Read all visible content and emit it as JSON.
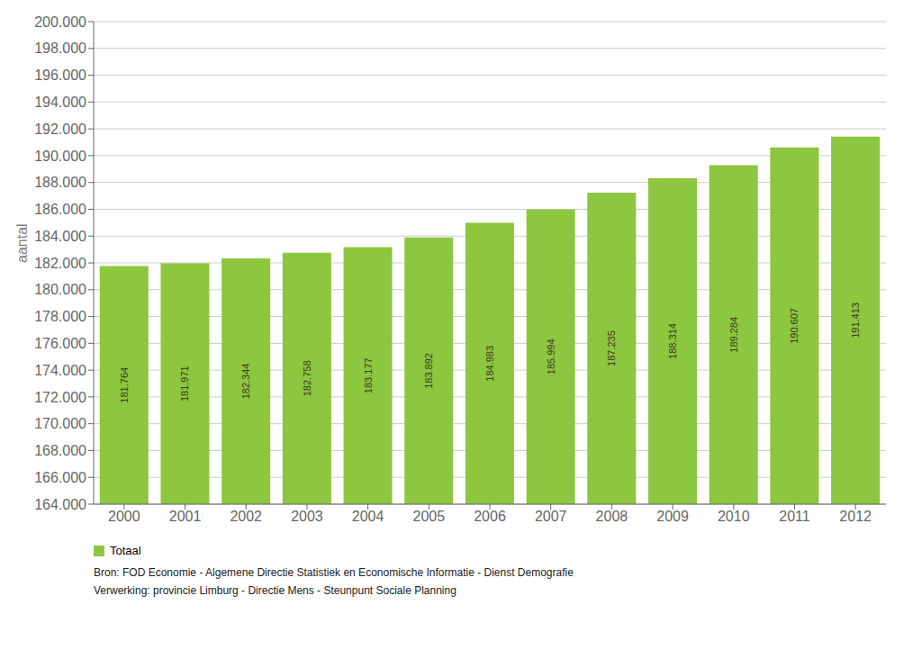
{
  "chart_data": {
    "type": "bar",
    "categories": [
      "2000",
      "2001",
      "2002",
      "2003",
      "2004",
      "2005",
      "2006",
      "2007",
      "2008",
      "2009",
      "2010",
      "2011",
      "2012"
    ],
    "series": [
      {
        "name": "Totaal",
        "color": "#8dc63f",
        "values": [
          181764,
          181971,
          182344,
          182758,
          183177,
          183892,
          184983,
          185994,
          187235,
          188314,
          189284,
          190607,
          191413
        ],
        "value_labels": [
          "181.764",
          "181.971",
          "182.344",
          "182.758",
          "183.177",
          "183.892",
          "184.983",
          "185.994",
          "187.235",
          "188.314",
          "189.284",
          "190.607",
          "191.413"
        ]
      }
    ],
    "y_label": "aantal",
    "ylim": [
      164000,
      200000
    ],
    "yticks": [
      {
        "value": 164000,
        "label": "164.000"
      },
      {
        "value": 166000,
        "label": "166.000"
      },
      {
        "value": 168000,
        "label": "168.000"
      },
      {
        "value": 170000,
        "label": "170.000"
      },
      {
        "value": 172000,
        "label": "172.000"
      },
      {
        "value": 174000,
        "label": "174.000"
      },
      {
        "value": 176000,
        "label": "176.000"
      },
      {
        "value": 178000,
        "label": "178.000"
      },
      {
        "value": 180000,
        "label": "180.000"
      },
      {
        "value": 182000,
        "label": "182.000"
      },
      {
        "value": 184000,
        "label": "184.000"
      },
      {
        "value": 186000,
        "label": "186.000"
      },
      {
        "value": 188000,
        "label": "188.000"
      },
      {
        "value": 190000,
        "label": "190.000"
      },
      {
        "value": 192000,
        "label": "192.000"
      },
      {
        "value": 194000,
        "label": "194.000"
      },
      {
        "value": 196000,
        "label": "196.000"
      },
      {
        "value": 198000,
        "label": "198.000"
      },
      {
        "value": 200000,
        "label": "200.000"
      }
    ],
    "grid": true,
    "data_labels": true,
    "legend": "lower left",
    "annotations": [
      "Bron: FOD Economie - Algemene Directie Statistiek en Economische Informatie - Dienst Demografie",
      "Verwerking: provincie Limburg - Directie Mens - Steunpunt Sociale Planning"
    ]
  }
}
